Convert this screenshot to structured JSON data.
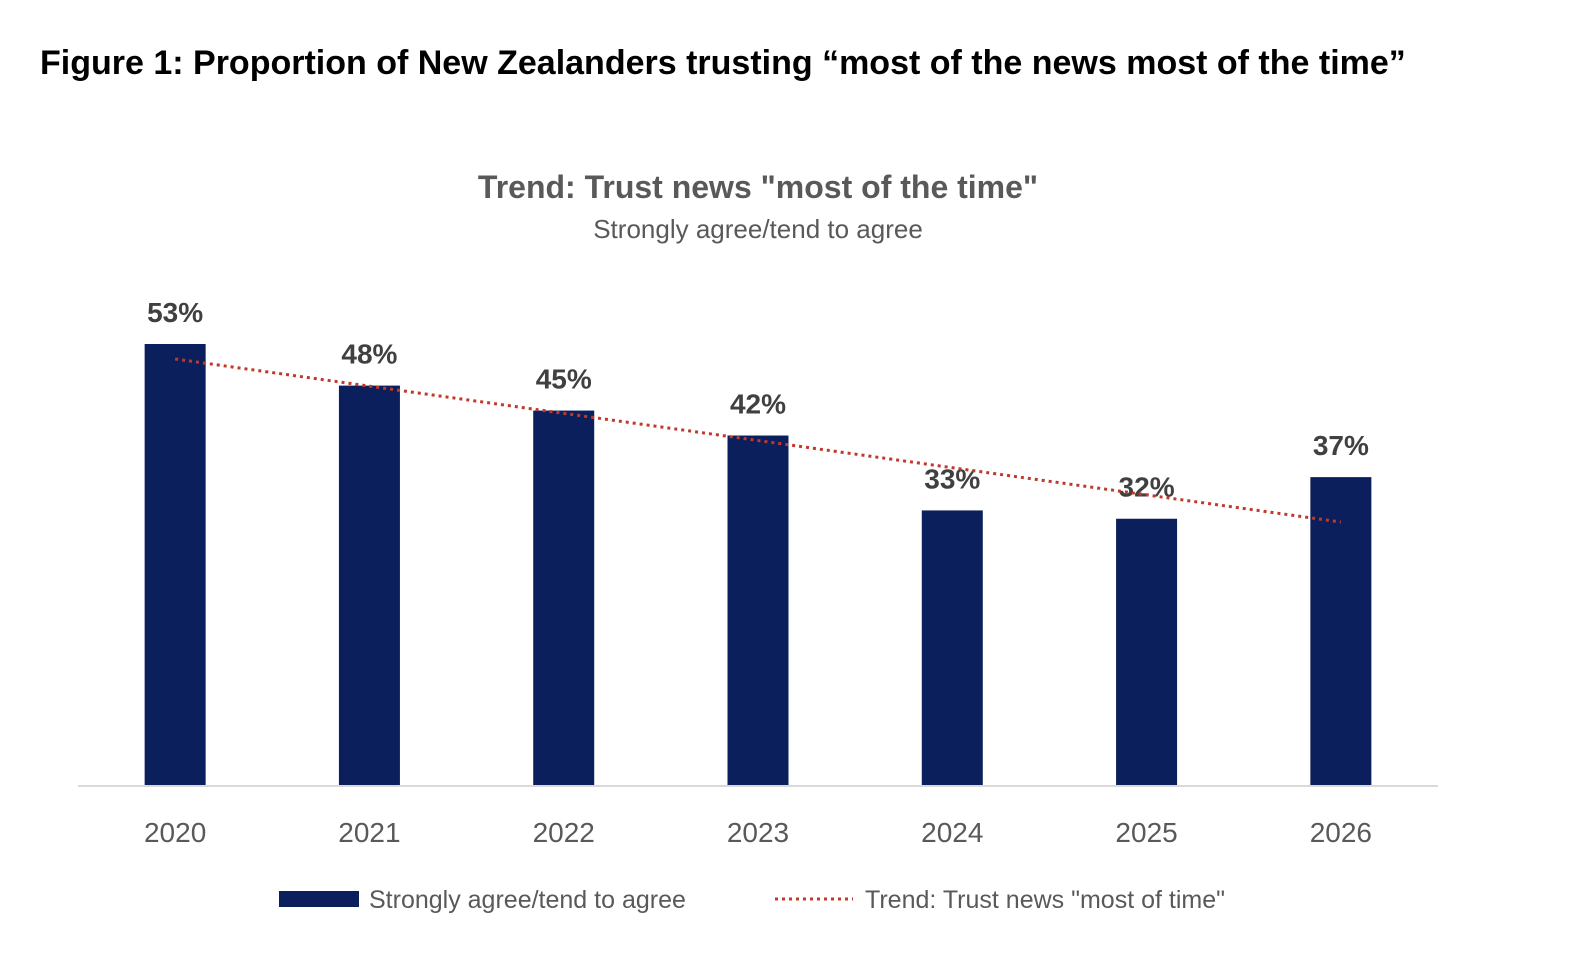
{
  "figure_title": "Figure 1: Proportion of New Zealanders trusting “most of the news most of the time”",
  "chart_data": {
    "type": "bar",
    "title": "Trend: Trust news \"most of the time\"",
    "subtitle": "Strongly agree/tend to agree",
    "categories": [
      "2020",
      "2021",
      "2022",
      "2023",
      "2024",
      "2025",
      "2026"
    ],
    "series": [
      {
        "name": "Strongly agree/tend to agree",
        "values": [
          53,
          48,
          45,
          42,
          33,
          32,
          37
        ],
        "labels": [
          "53%",
          "48%",
          "45%",
          "42%",
          "33%",
          "32%",
          "37%"
        ],
        "color": "#0b1f5c"
      }
    ],
    "trendline": {
      "name": "Trend: Trust news \"most of time\"",
      "start": 51.2,
      "end": 31.6,
      "color": "#c0392b",
      "style": "dotted"
    },
    "ylim": [
      0,
      53
    ],
    "grid": false,
    "legend": "bottom"
  }
}
